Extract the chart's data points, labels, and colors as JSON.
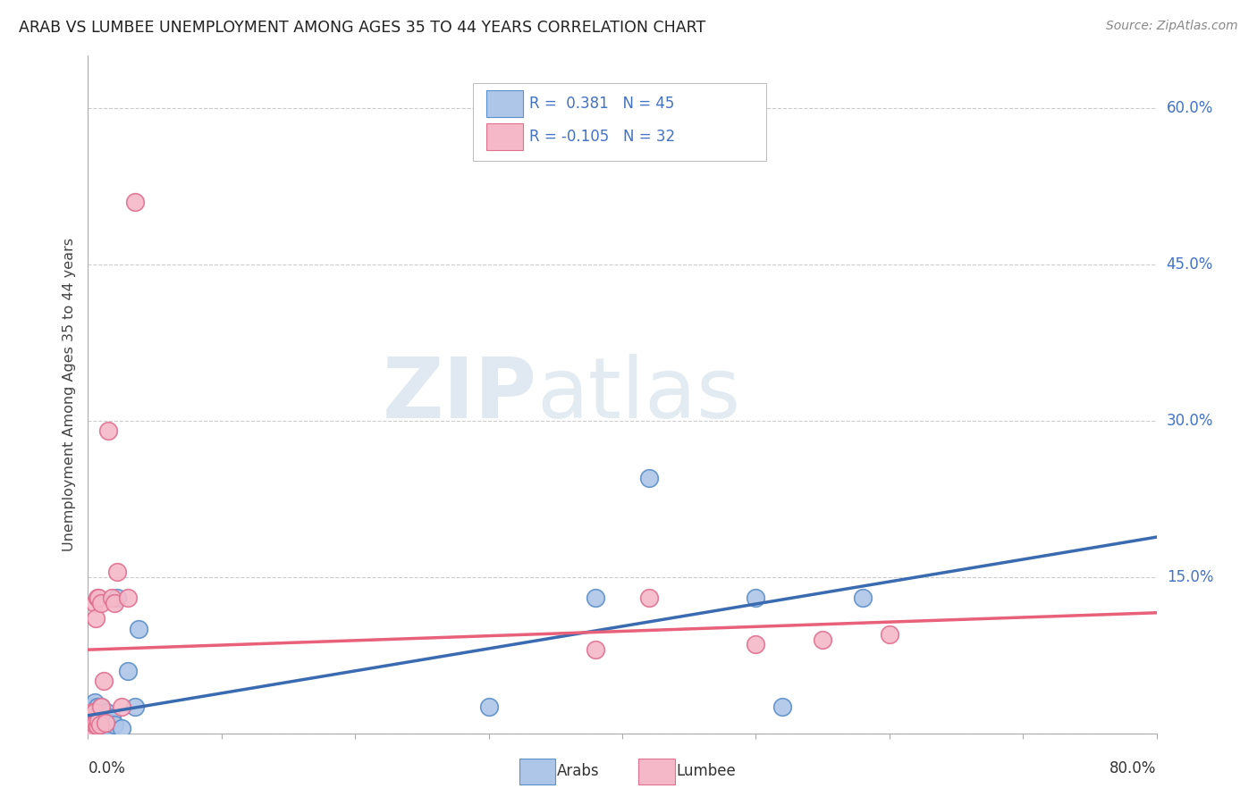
{
  "title": "ARAB VS LUMBEE UNEMPLOYMENT AMONG AGES 35 TO 44 YEARS CORRELATION CHART",
  "source": "Source: ZipAtlas.com",
  "ylabel": "Unemployment Among Ages 35 to 44 years",
  "xlim": [
    0.0,
    0.8
  ],
  "ylim": [
    0.0,
    0.65
  ],
  "yticks": [
    0.0,
    0.15,
    0.3,
    0.45,
    0.6
  ],
  "ytick_labels": [
    "",
    "15.0%",
    "30.0%",
    "45.0%",
    "60.0%"
  ],
  "arab_R": 0.381,
  "arab_N": 45,
  "lumbee_R": -0.105,
  "lumbee_N": 32,
  "arab_color": "#aec6e8",
  "arab_edge_color": "#5b8fc9",
  "lumbee_color": "#f5b8c8",
  "lumbee_edge_color": "#e07090",
  "arab_line_color": "#3a6ab0",
  "lumbee_line_color": "#e8607a",
  "background_color": "#ffffff",
  "arab_x": [
    0.003,
    0.003,
    0.003,
    0.003,
    0.004,
    0.004,
    0.004,
    0.004,
    0.005,
    0.005,
    0.005,
    0.005,
    0.005,
    0.006,
    0.006,
    0.006,
    0.007,
    0.007,
    0.007,
    0.008,
    0.008,
    0.008,
    0.009,
    0.009,
    0.01,
    0.01,
    0.01,
    0.012,
    0.013,
    0.014,
    0.015,
    0.016,
    0.018,
    0.02,
    0.022,
    0.025,
    0.03,
    0.035,
    0.038,
    0.3,
    0.38,
    0.42,
    0.5,
    0.52,
    0.58
  ],
  "arab_y": [
    0.005,
    0.01,
    0.015,
    0.02,
    0.003,
    0.007,
    0.012,
    0.025,
    0.004,
    0.008,
    0.015,
    0.022,
    0.03,
    0.005,
    0.01,
    0.02,
    0.006,
    0.012,
    0.025,
    0.004,
    0.009,
    0.018,
    0.007,
    0.015,
    0.005,
    0.012,
    0.025,
    0.008,
    0.013,
    0.02,
    0.006,
    0.01,
    0.015,
    0.008,
    0.13,
    0.005,
    0.06,
    0.025,
    0.1,
    0.025,
    0.13,
    0.245,
    0.13,
    0.025,
    0.13
  ],
  "lumbee_x": [
    0.003,
    0.003,
    0.003,
    0.004,
    0.004,
    0.005,
    0.005,
    0.005,
    0.005,
    0.006,
    0.006,
    0.007,
    0.007,
    0.008,
    0.008,
    0.009,
    0.01,
    0.01,
    0.012,
    0.013,
    0.015,
    0.018,
    0.02,
    0.022,
    0.025,
    0.03,
    0.035,
    0.38,
    0.42,
    0.5,
    0.55,
    0.6
  ],
  "lumbee_y": [
    0.006,
    0.012,
    0.02,
    0.005,
    0.015,
    0.008,
    0.013,
    0.02,
    0.125,
    0.01,
    0.11,
    0.007,
    0.13,
    0.012,
    0.13,
    0.008,
    0.125,
    0.025,
    0.05,
    0.01,
    0.29,
    0.13,
    0.125,
    0.155,
    0.025,
    0.13,
    0.51,
    0.08,
    0.13,
    0.085,
    0.09,
    0.095
  ]
}
